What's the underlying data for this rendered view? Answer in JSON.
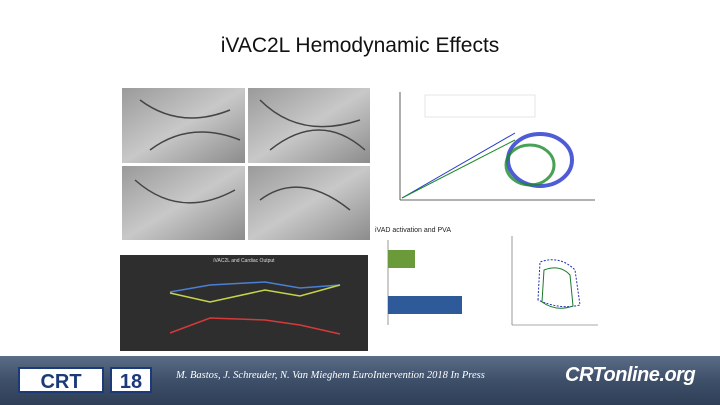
{
  "slide": {
    "title": "iVAC2L Hemodynamic Effects",
    "panels": {
      "bar_chart_title": "iVAD activation and PVA",
      "line_chart_title": "iVAC2L and Cardiac Output"
    },
    "footer": {
      "logo_left": [
        "CRT",
        "18"
      ],
      "citation": "M. Bastos, J. Schreuder, N. Van Mieghem EuroIntervention 2018 In Press",
      "logo_right": "CRTonline.org"
    }
  }
}
